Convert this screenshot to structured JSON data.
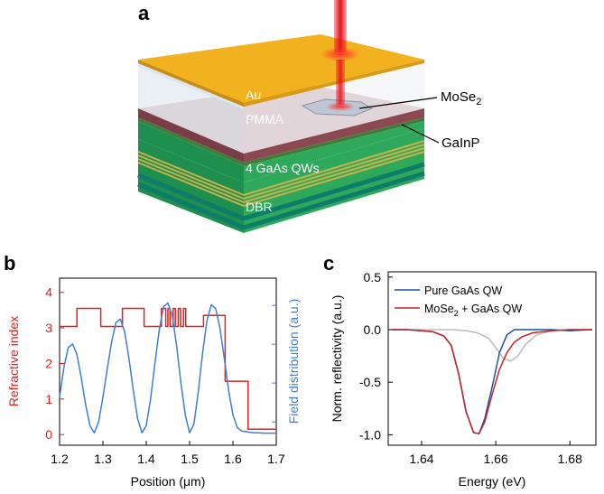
{
  "panels": {
    "a": "a",
    "b": "b",
    "c": "c"
  },
  "schematic": {
    "layers": {
      "au": "Au",
      "pmma": "PMMA",
      "qws": "4 GaAs QWs",
      "dbr": "DBR"
    },
    "callouts": {
      "mose2_base": "MoSe",
      "mose2_sub": "2",
      "gainp": "GaInP"
    }
  },
  "colors": {
    "gold": "#F2B21F",
    "pmma": "#8B4A52",
    "green": "#2EA85A",
    "dark_green": "#0E7C6B",
    "qw_stripe": "#C9B24A",
    "laser": "#E8101C",
    "ref_index": "#E0201C",
    "field": "#3F7FD0",
    "pure_qw": "#1F4F9C",
    "mose2_qw": "#C0242C",
    "gray_curve": "#BDBDBD"
  },
  "chart_data": [
    {
      "panel": "b",
      "type": "line",
      "xlabel": "Position (μm)",
      "ylabel_left": "Refractive index",
      "ylabel_right": "Field distribution (a.u.)",
      "xlim": [
        1.2,
        1.7
      ],
      "ylim_left": [
        -0.3,
        4.4
      ],
      "xticks": [
        "1.2",
        "1.3",
        "1.4",
        "1.5",
        "1.6",
        "1.7"
      ],
      "yticks_left": [
        "0",
        "1",
        "2",
        "3",
        "4"
      ],
      "series": [
        {
          "role": "refractive_index",
          "x": [
            1.2,
            1.24,
            1.24,
            1.295,
            1.295,
            1.345,
            1.345,
            1.395,
            1.395,
            1.435,
            1.435,
            1.445,
            1.445,
            1.45,
            1.45,
            1.455,
            1.455,
            1.462,
            1.462,
            1.467,
            1.467,
            1.474,
            1.474,
            1.479,
            1.479,
            1.486,
            1.486,
            1.491,
            1.491,
            1.532,
            1.532,
            1.582,
            1.582,
            1.592,
            1.592,
            1.635,
            1.635,
            1.7
          ],
          "y": [
            3.04,
            3.04,
            3.55,
            3.55,
            3.04,
            3.04,
            3.55,
            3.55,
            3.04,
            3.04,
            3.55,
            3.55,
            3.04,
            3.04,
            3.55,
            3.55,
            3.04,
            3.04,
            3.55,
            3.55,
            3.04,
            3.04,
            3.55,
            3.55,
            3.04,
            3.04,
            3.55,
            3.55,
            3.04,
            3.04,
            3.35,
            3.35,
            1.5,
            1.5,
            1.5,
            1.5,
            0.15,
            0.15
          ]
        },
        {
          "role": "field_distribution",
          "note": "unitless, plotted on left-axis scale",
          "x": [
            1.2,
            1.21,
            1.22,
            1.23,
            1.24,
            1.25,
            1.26,
            1.27,
            1.28,
            1.29,
            1.3,
            1.31,
            1.32,
            1.33,
            1.34,
            1.35,
            1.36,
            1.37,
            1.38,
            1.39,
            1.4,
            1.41,
            1.42,
            1.43,
            1.44,
            1.45,
            1.46,
            1.47,
            1.48,
            1.49,
            1.5,
            1.51,
            1.52,
            1.53,
            1.54,
            1.55,
            1.56,
            1.57,
            1.58,
            1.59,
            1.6,
            1.61,
            1.62,
            1.63,
            1.64,
            1.65,
            1.66,
            1.67,
            1.68,
            1.69,
            1.7
          ],
          "y": [
            1.05,
            1.9,
            2.45,
            2.55,
            2.25,
            1.6,
            0.85,
            0.25,
            0.05,
            0.35,
            1.05,
            1.85,
            2.6,
            3.15,
            3.25,
            2.9,
            2.15,
            1.25,
            0.45,
            0.05,
            0.25,
            1.0,
            2.0,
            2.95,
            3.6,
            3.7,
            3.35,
            2.5,
            1.45,
            0.55,
            0.05,
            0.3,
            1.2,
            2.3,
            3.2,
            3.65,
            3.55,
            3.0,
            2.15,
            1.25,
            0.55,
            0.2,
            0.1,
            0.08,
            0.06,
            0.05,
            0.05,
            0.04,
            0.04,
            0.04,
            0.04
          ]
        }
      ]
    },
    {
      "panel": "c",
      "type": "line",
      "xlabel": "Energy (eV)",
      "ylabel": "Norm. reflectivity (a.u.)",
      "xlim": [
        1.631,
        1.687
      ],
      "ylim": [
        -1.1,
        0.55
      ],
      "xticks": [
        "1.64",
        "1.66",
        "1.68"
      ],
      "yticks": [
        "0.5",
        "0.0",
        "-0.5",
        "-1.0"
      ],
      "legend_position": "top-left",
      "series": [
        {
          "name": "Pure GaAs QW",
          "x": [
            1.632,
            1.636,
            1.64,
            1.643,
            1.646,
            1.648,
            1.65,
            1.652,
            1.654,
            1.6555,
            1.657,
            1.659,
            1.661,
            1.663,
            1.665,
            1.667,
            1.67,
            1.675,
            1.68,
            1.686
          ],
          "y": [
            0.0,
            0.0,
            -0.01,
            -0.02,
            -0.06,
            -0.15,
            -0.42,
            -0.78,
            -0.98,
            -0.99,
            -0.85,
            -0.55,
            -0.22,
            -0.05,
            0.0,
            0.0,
            0.0,
            0.0,
            -0.01,
            0.0
          ]
        },
        {
          "name_base": "MoSe",
          "name_sub": "2",
          "name_tail": " + GaAs QW",
          "x": [
            1.632,
            1.636,
            1.64,
            1.643,
            1.646,
            1.648,
            1.65,
            1.652,
            1.654,
            1.6555,
            1.657,
            1.659,
            1.661,
            1.663,
            1.665,
            1.667,
            1.67,
            1.675,
            1.68,
            1.686
          ],
          "y": [
            0.0,
            0.0,
            -0.01,
            -0.02,
            -0.06,
            -0.15,
            -0.42,
            -0.78,
            -0.98,
            -0.99,
            -0.88,
            -0.62,
            -0.38,
            -0.22,
            -0.12,
            -0.07,
            -0.03,
            -0.01,
            0.0,
            0.0
          ]
        },
        {
          "role": "difference",
          "x": [
            1.632,
            1.64,
            1.648,
            1.652,
            1.655,
            1.658,
            1.66,
            1.662,
            1.664,
            1.666,
            1.668,
            1.671,
            1.675,
            1.68,
            1.686
          ],
          "y": [
            0.0,
            0.0,
            0.0,
            -0.01,
            -0.03,
            -0.08,
            -0.17,
            -0.27,
            -0.3,
            -0.25,
            -0.14,
            -0.05,
            -0.01,
            0.0,
            0.0
          ]
        }
      ]
    }
  ]
}
